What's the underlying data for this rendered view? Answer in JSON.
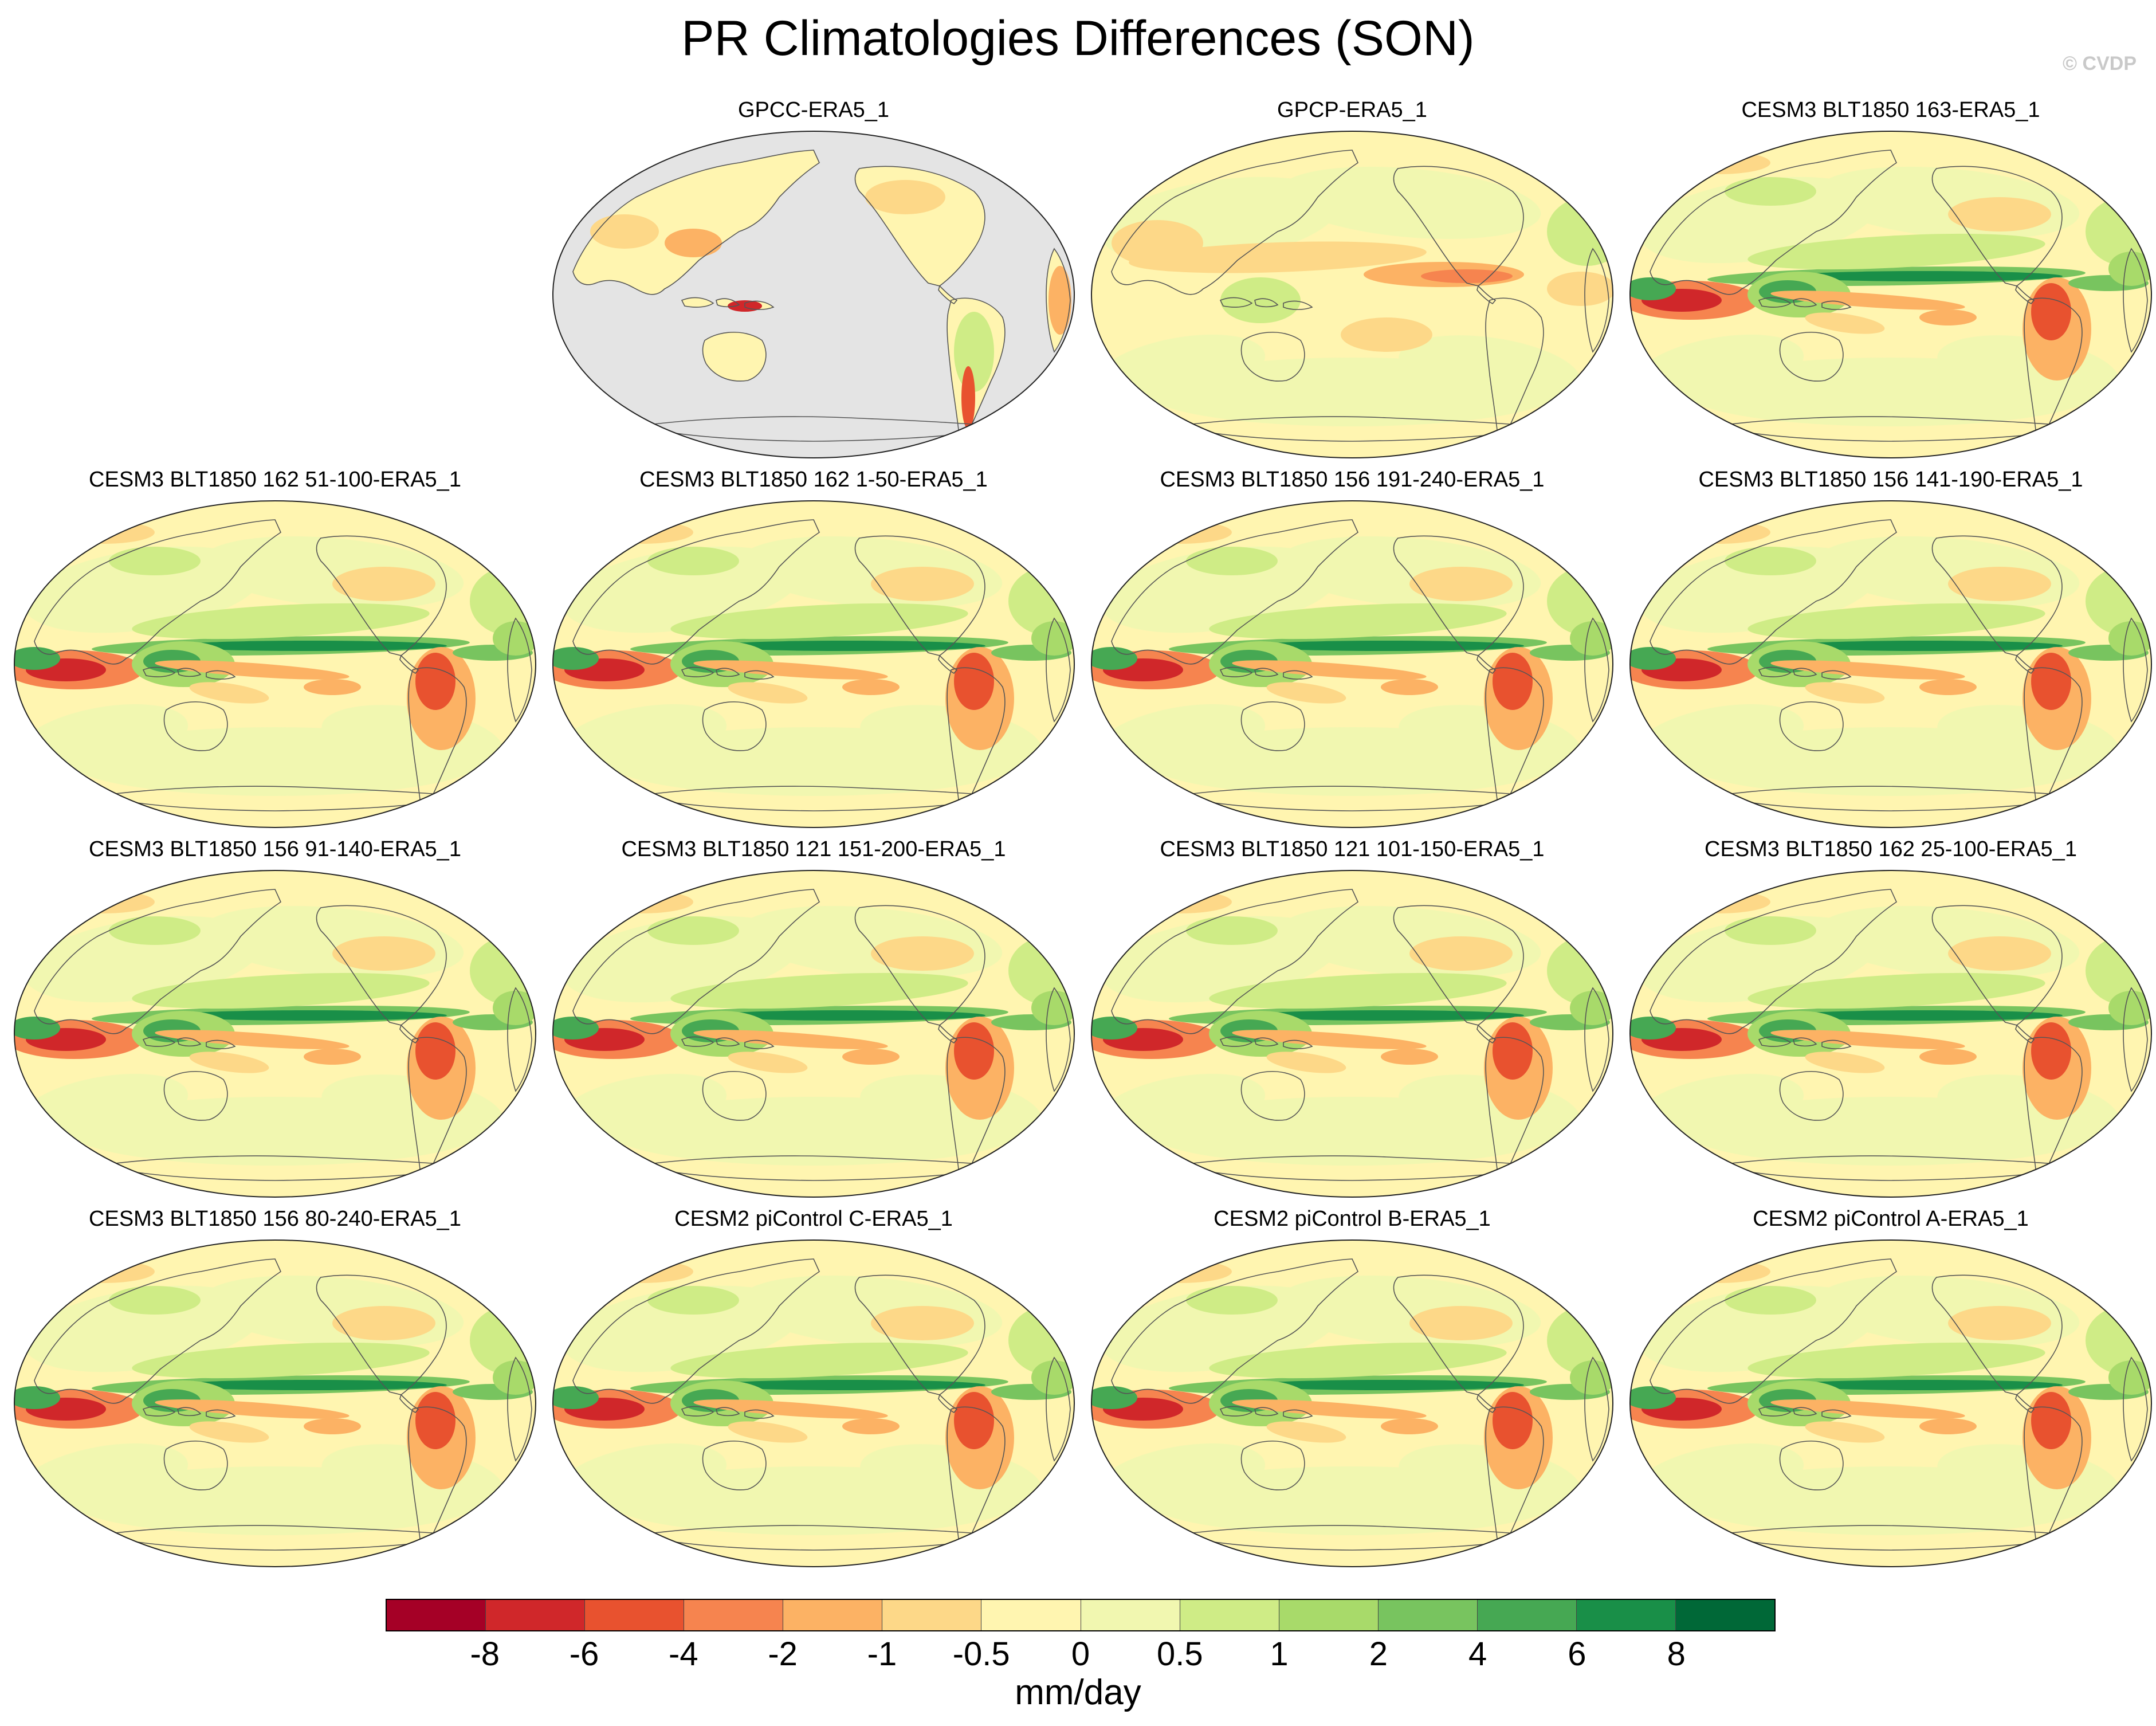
{
  "title": "PR Climatologies Differences (SON)",
  "credit": "© CVDP",
  "colorbar": {
    "units": "mm/day",
    "colors": [
      "#a50026",
      "#d0272a",
      "#e8522f",
      "#f6844f",
      "#fcb264",
      "#fdd888",
      "#fff5b0",
      "#f1f7b0",
      "#cfec86",
      "#a8da6a",
      "#78c45f",
      "#46a853",
      "#198f48",
      "#006837"
    ],
    "tick_labels": [
      "-8",
      "-6",
      "-4",
      "-2",
      "-1",
      "-0.5",
      "0",
      "0.5",
      "1",
      "2",
      "4",
      "6",
      "8"
    ]
  },
  "panels": [
    {
      "label": "GPCC-ERA5_1",
      "land_only": true
    },
    {
      "label": "GPCP-ERA5_1"
    },
    {
      "label": "CESM3 BLT1850 163-ERA5_1"
    },
    {
      "label": "CESM3 BLT1850 162 51-100-ERA5_1"
    },
    {
      "label": "CESM3 BLT1850 162 1-50-ERA5_1"
    },
    {
      "label": "CESM3 BLT1850 156 191-240-ERA5_1"
    },
    {
      "label": "CESM3 BLT1850 156 141-190-ERA5_1"
    },
    {
      "label": "CESM3 BLT1850 156 91-140-ERA5_1"
    },
    {
      "label": "CESM3 BLT1850 121 151-200-ERA5_1"
    },
    {
      "label": "CESM3 BLT1850 121 101-150-ERA5_1"
    },
    {
      "label": "CESM3 BLT1850 162 25-100-ERA5_1"
    },
    {
      "label": "CESM3 BLT1850 156 80-240-ERA5_1"
    },
    {
      "label": "CESM2 piControl C-ERA5_1"
    },
    {
      "label": "CESM2 piControl B-ERA5_1"
    },
    {
      "label": "CESM2 piControl A-ERA5_1"
    }
  ]
}
